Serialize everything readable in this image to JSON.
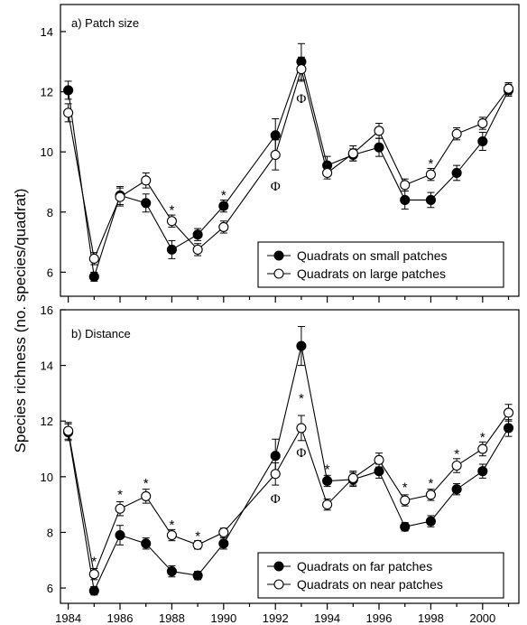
{
  "ylabel": "Species richness (no. species/quadrat)",
  "chart_data": [
    {
      "type": "line",
      "title": "a) Patch size",
      "x": [
        1984,
        1985,
        1986,
        1987,
        1988,
        1989,
        1990,
        1992,
        1993,
        1994,
        1995,
        1996,
        1997,
        1998,
        1999,
        2000,
        2001
      ],
      "ylim": [
        5.2,
        14.9
      ],
      "yticks": [
        6,
        8,
        10,
        12,
        14
      ],
      "legend": "bottom-right",
      "series": [
        {
          "name": "Quadrats on small patches",
          "marker": "filled",
          "values": [
            12.05,
            5.85,
            8.55,
            8.3,
            6.75,
            7.25,
            8.2,
            10.55,
            13.0,
            9.55,
            9.9,
            10.15,
            8.4,
            8.4,
            9.3,
            10.35,
            12.05
          ],
          "err": [
            0.3,
            0.15,
            0.3,
            0.3,
            0.3,
            0.2,
            0.2,
            0.55,
            0.6,
            0.3,
            0.2,
            0.3,
            0.3,
            0.25,
            0.25,
            0.3,
            0.2
          ]
        },
        {
          "name": "Quadrats on large patches",
          "marker": "open",
          "values": [
            11.3,
            6.45,
            8.5,
            9.05,
            7.7,
            6.75,
            7.5,
            9.9,
            12.75,
            9.3,
            9.95,
            10.7,
            8.9,
            9.25,
            10.6,
            10.95,
            12.1
          ],
          "err": [
            0.3,
            0.2,
            0.3,
            0.25,
            0.2,
            0.2,
            0.2,
            0.5,
            0.4,
            0.2,
            0.25,
            0.25,
            0.2,
            0.2,
            0.2,
            0.2,
            0.2
          ]
        }
      ],
      "annotations": [
        {
          "x": 1988,
          "y": 8.1,
          "text": "*"
        },
        {
          "x": 1990,
          "y": 8.6,
          "text": "*"
        },
        {
          "x": 1998,
          "y": 9.65,
          "text": "*"
        },
        {
          "x": 1992,
          "y": 8.9,
          "text": "Φ"
        },
        {
          "x": 1993,
          "y": 11.8,
          "text": "Φ"
        }
      ]
    },
    {
      "type": "line",
      "title": "b) Distance",
      "x": [
        1984,
        1985,
        1986,
        1987,
        1988,
        1989,
        1990,
        1992,
        1993,
        1994,
        1995,
        1996,
        1997,
        1998,
        1999,
        2000,
        2001
      ],
      "xticks": [
        1984,
        1986,
        1988,
        1990,
        1992,
        1994,
        1996,
        1998,
        2000
      ],
      "ylim": [
        5.45,
        16.0
      ],
      "yticks": [
        6,
        8,
        10,
        12,
        14,
        16
      ],
      "legend": "bottom-right",
      "series": [
        {
          "name": "Quadrats on far patches",
          "marker": "filled",
          "values": [
            11.6,
            5.9,
            7.9,
            7.6,
            6.6,
            6.45,
            7.6,
            10.75,
            14.7,
            9.85,
            9.9,
            10.2,
            8.2,
            8.4,
            9.55,
            10.2,
            11.75
          ],
          "err": [
            0.3,
            0.15,
            0.35,
            0.2,
            0.2,
            0.15,
            0.2,
            0.6,
            0.7,
            0.2,
            0.25,
            0.25,
            0.15,
            0.2,
            0.2,
            0.25,
            0.3
          ]
        },
        {
          "name": "Quadrats on near patches",
          "marker": "open",
          "values": [
            11.65,
            6.5,
            8.85,
            9.3,
            7.9,
            7.55,
            8.0,
            10.1,
            11.75,
            9.0,
            9.95,
            10.6,
            9.15,
            9.35,
            10.4,
            11.0,
            12.3
          ],
          "err": [
            0.3,
            0.2,
            0.25,
            0.25,
            0.2,
            0.15,
            0.15,
            0.4,
            0.45,
            0.2,
            0.25,
            0.25,
            0.2,
            0.2,
            0.25,
            0.25,
            0.3
          ]
        }
      ],
      "annotations": [
        {
          "x": 1985,
          "y": 7.0,
          "text": "*"
        },
        {
          "x": 1986,
          "y": 9.4,
          "text": "*"
        },
        {
          "x": 1987,
          "y": 9.8,
          "text": "*"
        },
        {
          "x": 1988,
          "y": 8.3,
          "text": "*"
        },
        {
          "x": 1989,
          "y": 7.9,
          "text": "*"
        },
        {
          "x": 1993,
          "y": 12.85,
          "text": "*"
        },
        {
          "x": 1994,
          "y": 10.3,
          "text": "*"
        },
        {
          "x": 1997,
          "y": 9.65,
          "text": "*"
        },
        {
          "x": 1998,
          "y": 9.8,
          "text": "*"
        },
        {
          "x": 1999,
          "y": 10.85,
          "text": "*"
        },
        {
          "x": 2000,
          "y": 11.45,
          "text": "*"
        },
        {
          "x": 1992,
          "y": 9.25,
          "text": "Φ"
        },
        {
          "x": 1993,
          "y": 10.9,
          "text": "Φ"
        }
      ]
    }
  ]
}
